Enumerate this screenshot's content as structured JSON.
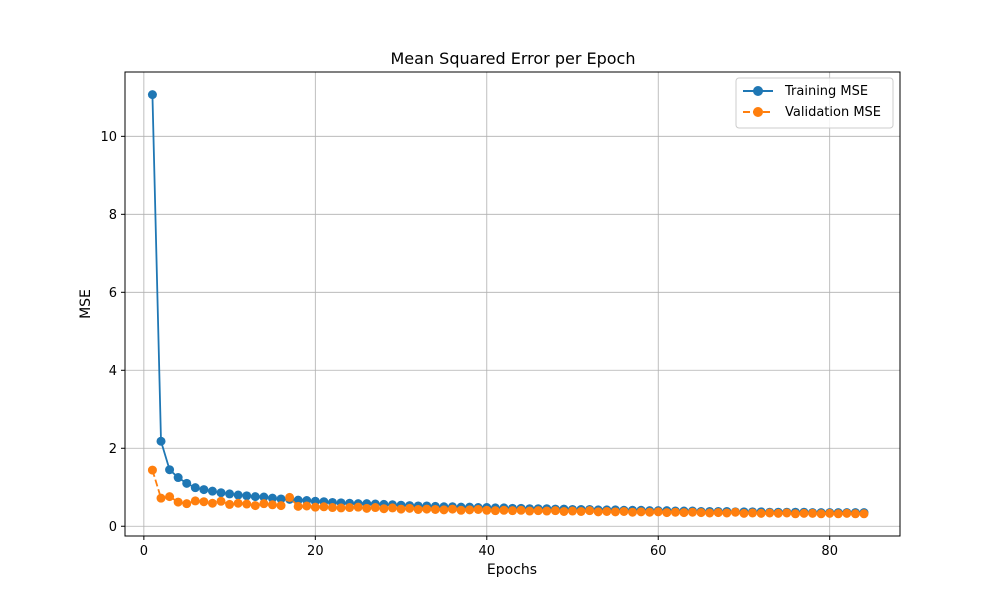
{
  "chart_data": {
    "type": "line",
    "title": "Mean Squared Error per Epoch",
    "xlabel": "Epochs",
    "ylabel": "MSE",
    "xlim": [
      -2.2,
      88.2
    ],
    "ylim": [
      -0.25,
      11.65
    ],
    "xticks": [
      0,
      20,
      40,
      60,
      80
    ],
    "yticks": [
      0,
      2,
      4,
      6,
      8,
      10
    ],
    "grid": true,
    "legend_position": "top-right",
    "x": [
      1,
      2,
      3,
      4,
      5,
      6,
      7,
      8,
      9,
      10,
      11,
      12,
      13,
      14,
      15,
      16,
      17,
      18,
      19,
      20,
      21,
      22,
      23,
      24,
      25,
      26,
      27,
      28,
      29,
      30,
      31,
      32,
      33,
      34,
      35,
      36,
      37,
      38,
      39,
      40,
      41,
      42,
      43,
      44,
      45,
      46,
      47,
      48,
      49,
      50,
      51,
      52,
      53,
      54,
      55,
      56,
      57,
      58,
      59,
      60,
      61,
      62,
      63,
      64,
      65,
      66,
      67,
      68,
      69,
      70,
      71,
      72,
      73,
      74,
      75,
      76,
      77,
      78,
      79,
      80,
      81,
      82,
      83,
      84
    ],
    "series": [
      {
        "name": "Training MSE",
        "color": "#1f77b4",
        "linestyle": "solid",
        "values": [
          11.07,
          2.18,
          1.45,
          1.25,
          1.1,
          0.99,
          0.94,
          0.9,
          0.86,
          0.83,
          0.8,
          0.78,
          0.76,
          0.75,
          0.72,
          0.7,
          0.69,
          0.67,
          0.66,
          0.64,
          0.63,
          0.61,
          0.6,
          0.59,
          0.58,
          0.58,
          0.57,
          0.56,
          0.55,
          0.54,
          0.53,
          0.52,
          0.52,
          0.51,
          0.5,
          0.5,
          0.49,
          0.49,
          0.48,
          0.48,
          0.47,
          0.47,
          0.46,
          0.46,
          0.45,
          0.45,
          0.45,
          0.44,
          0.44,
          0.43,
          0.43,
          0.43,
          0.42,
          0.42,
          0.42,
          0.41,
          0.41,
          0.41,
          0.4,
          0.4,
          0.4,
          0.39,
          0.39,
          0.39,
          0.38,
          0.38,
          0.38,
          0.38,
          0.37,
          0.37,
          0.37,
          0.37,
          0.36,
          0.36,
          0.36,
          0.36,
          0.36,
          0.35,
          0.35,
          0.35,
          0.35,
          0.35,
          0.35,
          0.35
        ]
      },
      {
        "name": "Validation MSE",
        "color": "#ff7f0e",
        "linestyle": "dashed",
        "values": [
          1.44,
          0.72,
          0.76,
          0.62,
          0.58,
          0.65,
          0.63,
          0.59,
          0.64,
          0.56,
          0.59,
          0.57,
          0.53,
          0.58,
          0.55,
          0.53,
          0.74,
          0.51,
          0.52,
          0.49,
          0.5,
          0.48,
          0.47,
          0.48,
          0.49,
          0.46,
          0.48,
          0.45,
          0.47,
          0.44,
          0.46,
          0.43,
          0.44,
          0.43,
          0.42,
          0.44,
          0.41,
          0.42,
          0.43,
          0.41,
          0.4,
          0.41,
          0.4,
          0.41,
          0.39,
          0.4,
          0.39,
          0.4,
          0.38,
          0.39,
          0.38,
          0.4,
          0.37,
          0.38,
          0.37,
          0.38,
          0.36,
          0.37,
          0.36,
          0.37,
          0.35,
          0.36,
          0.35,
          0.36,
          0.35,
          0.34,
          0.35,
          0.34,
          0.36,
          0.33,
          0.34,
          0.33,
          0.34,
          0.33,
          0.34,
          0.32,
          0.33,
          0.33,
          0.32,
          0.33,
          0.32,
          0.33,
          0.32,
          0.32
        ]
      }
    ]
  }
}
